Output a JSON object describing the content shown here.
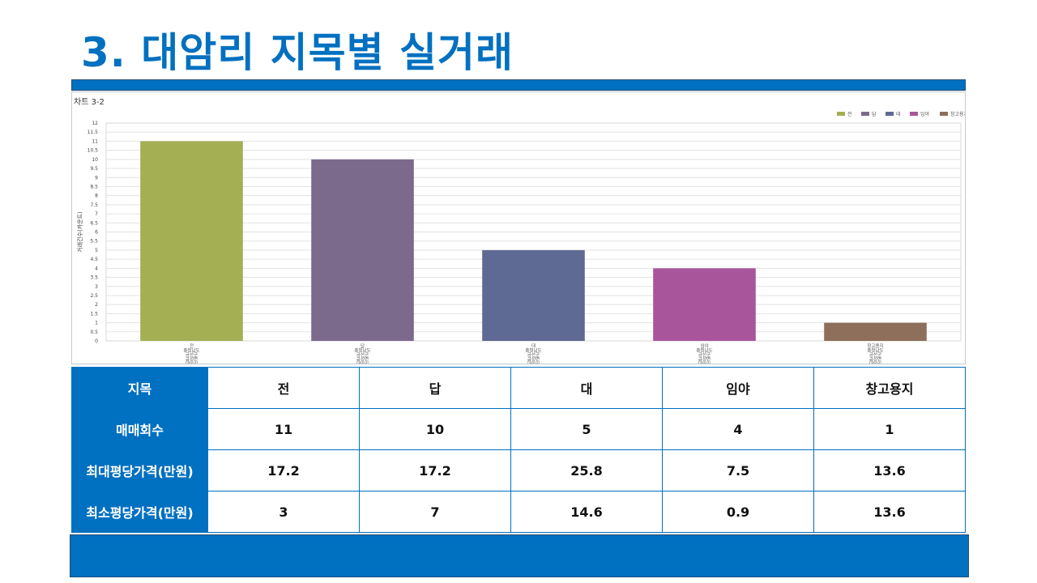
{
  "title": "3. 대암리 지목별 실거래",
  "chart_caption": "차트 3-2",
  "chart_data": {
    "type": "bar",
    "categories": [
      "전",
      "답",
      "대",
      "임야",
      "창고용지"
    ],
    "category_sublabels": [
      "충청남도",
      "금산군",
      "금성면",
      "대암리"
    ],
    "values": [
      11,
      10,
      5,
      4,
      1
    ],
    "colors": [
      "#A4AF53",
      "#7C6A8D",
      "#5E6A93",
      "#A9559C",
      "#8E6F5B"
    ],
    "ylabel": "거래건수(카운트)",
    "xlabel": "",
    "ylim": [
      0,
      12
    ],
    "ytick_step": 0.5,
    "grid": true,
    "legend": "top-right"
  },
  "table": {
    "header_label": "지목",
    "columns": [
      "전",
      "답",
      "대",
      "임야",
      "창고용지"
    ],
    "rows": [
      {
        "label": "매매회수",
        "values": [
          "11",
          "10",
          "5",
          "4",
          "1"
        ]
      },
      {
        "label": "최대평당가격(만원)",
        "values": [
          "17.2",
          "17.2",
          "25.8",
          "7.5",
          "13.6"
        ]
      },
      {
        "label": "최소평당가격(만원)",
        "values": [
          "3",
          "7",
          "14.6",
          "0.9",
          "13.6"
        ]
      }
    ]
  }
}
